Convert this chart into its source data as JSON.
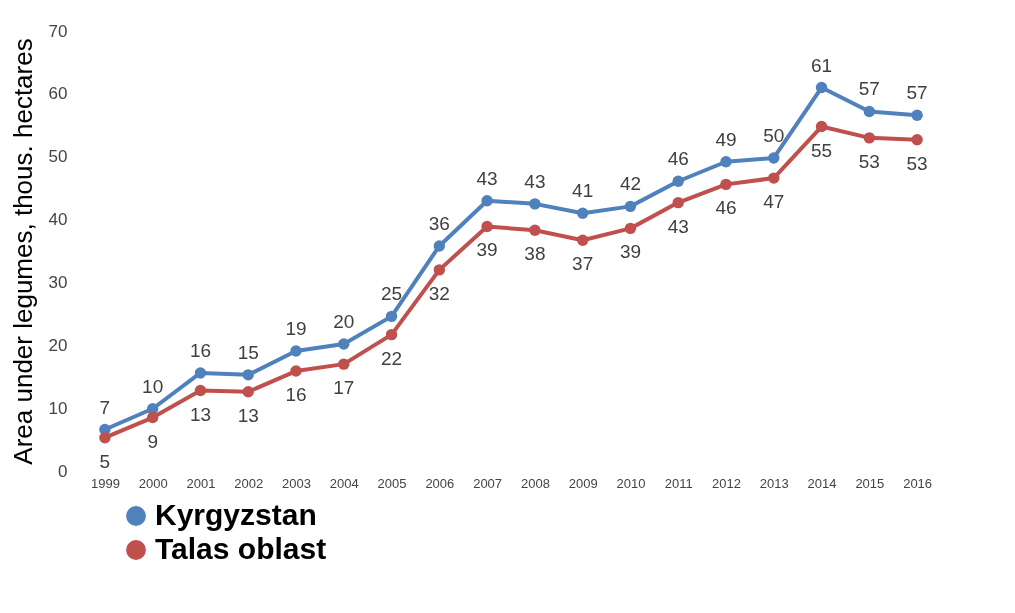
{
  "chart_data": {
    "type": "line",
    "ylabel": "Area under legumes, thous. hectares",
    "categories": [
      "1999",
      "2000",
      "2001",
      "2002",
      "2003",
      "2004",
      "2005",
      "2006",
      "2007",
      "2008",
      "2009",
      "2010",
      "2011",
      "2012",
      "2013",
      "2014",
      "2015",
      "2016"
    ],
    "series": [
      {
        "name": "Kyrgyzstan",
        "color": "#4f81bd",
        "values": [
          6.6,
          9.9,
          15.6,
          15.3,
          19.1,
          20.2,
          24.6,
          35.8,
          43,
          42.5,
          41,
          42.1,
          46.1,
          49.2,
          49.8,
          61,
          57.2,
          56.6
        ],
        "value_labels": [
          "7",
          "10",
          "16",
          "15",
          "19",
          "20",
          "25",
          "36",
          "43",
          "43",
          "41",
          "42",
          "46",
          "49",
          "50",
          "61",
          "57",
          "57"
        ]
      },
      {
        "name": "Talas oblast",
        "color": "#c0504d",
        "values": [
          5.3,
          8.5,
          12.8,
          12.6,
          15.9,
          17,
          21.7,
          32,
          38.9,
          38.3,
          36.7,
          38.6,
          42.7,
          45.6,
          46.6,
          54.8,
          53,
          52.7
        ],
        "value_labels": [
          "5",
          "9",
          "13",
          "13",
          "16",
          "17",
          "22",
          "32",
          "39",
          "38",
          "37",
          "39",
          "43",
          "46",
          "47",
          "55",
          "53",
          "53"
        ]
      }
    ],
    "ylim": [
      0,
      70
    ],
    "yticks": [
      0,
      10,
      20,
      30,
      40,
      50,
      60,
      70
    ],
    "grid": false,
    "legend": "bottom left",
    "marker": "circle",
    "line_style": "solid"
  }
}
